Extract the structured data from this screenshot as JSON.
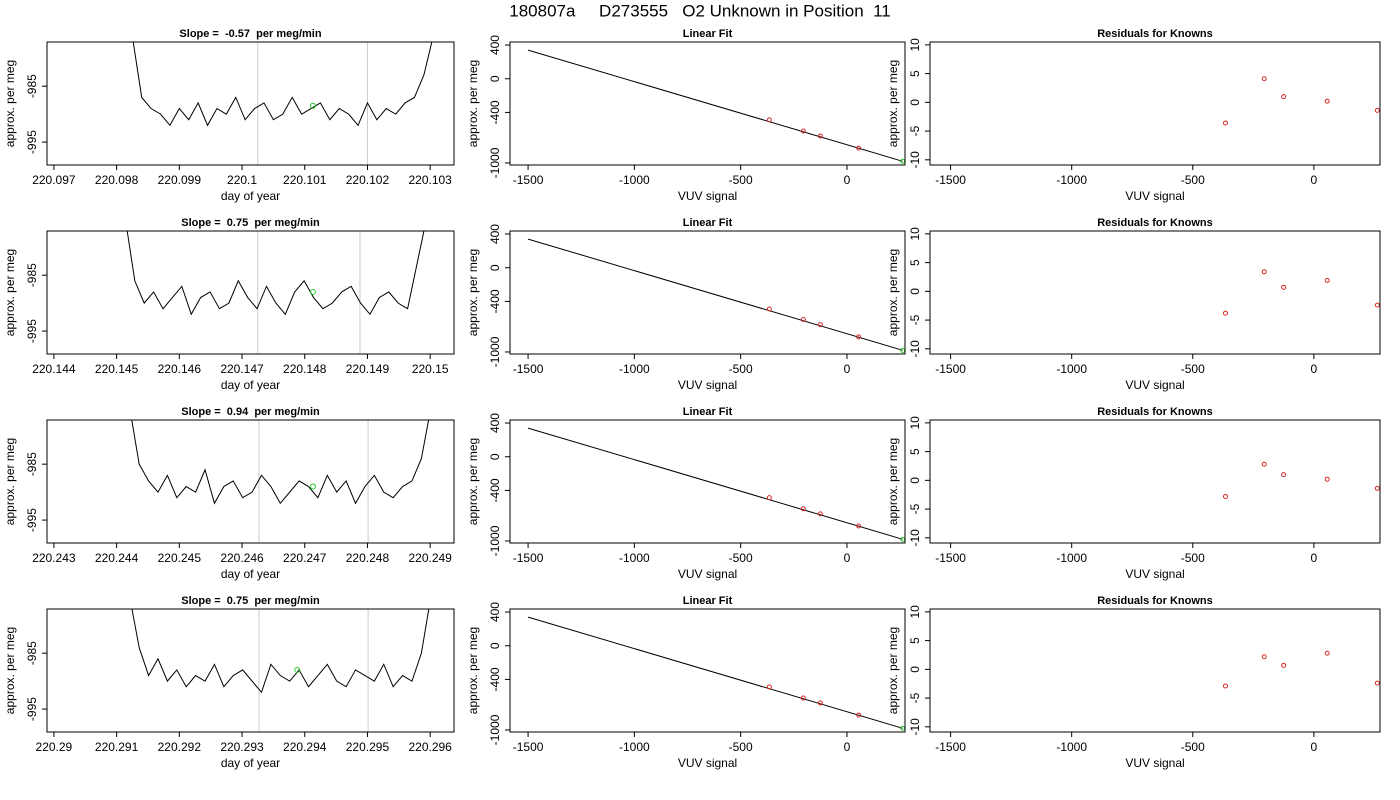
{
  "title": "180807a     D273555   O2 Unknown in Position  11",
  "chart_data": [
    {
      "type": "line",
      "title": "Slope =  -0.57  per meg/min",
      "x_label": "day of year",
      "y_label": "approx. per meg",
      "color": "#000000",
      "x": [
        220.09825,
        220.0984,
        220.09855,
        220.0987,
        220.09885,
        220.099,
        220.09915,
        220.0993,
        220.09945,
        220.0996,
        220.09975,
        220.0999,
        220.10005,
        220.1002,
        220.10035,
        220.1005,
        220.10065,
        220.1008,
        220.10095,
        220.1011,
        220.10125,
        220.1014,
        220.10155,
        220.1017,
        220.10185,
        220.102,
        220.10215,
        220.1023,
        220.10245,
        220.1026,
        220.10275,
        220.1029,
        220.10305
      ],
      "values": [
        -976,
        -987,
        -989,
        -990,
        -992,
        -989,
        -991,
        -988,
        -992,
        -989,
        -990,
        -987,
        -991,
        -989,
        -988,
        -991,
        -990,
        -987,
        -990,
        -989,
        -988,
        -991,
        -989,
        -990,
        -992,
        -988,
        -991,
        -989,
        -990,
        -988,
        -987,
        -983,
        -976
      ],
      "xlim": [
        220.09689,
        220.10338
      ],
      "xticks": [
        220.097,
        220.098,
        220.099,
        220.1,
        220.101,
        220.102,
        220.103
      ],
      "ylim": [
        -999.1,
        -977.1
      ],
      "yticks": [
        -985,
        -995
      ],
      "vlines": [
        220.10025,
        220.102
      ],
      "vline_color": "#cccccc",
      "highlight": {
        "x": 220.10113,
        "y": -988.5,
        "color": "#22cc22"
      }
    },
    {
      "type": "scatter",
      "title": "Linear Fit",
      "x_label": "VUV signal",
      "y_label": "approx. per meg",
      "fit_line": {
        "x": [
          -1500,
          262
        ],
        "y": [
          340,
          -980
        ],
        "color": "#000000"
      },
      "series": [
        {
          "color": "#d62728",
          "x": [
            -365,
            -205,
            -125,
            55
          ],
          "values": [
            -488,
            -620,
            -680,
            -824
          ]
        },
        {
          "color": "#22cc22",
          "x": [
            262
          ],
          "values": [
            -980
          ]
        }
      ],
      "xlim": [
        -1585,
        273
      ],
      "xticks": [
        -1500,
        -1000,
        -500,
        0
      ],
      "ylim": [
        -1024,
        436
      ],
      "yticks": [
        400,
        0,
        -400,
        -1000
      ]
    },
    {
      "type": "scatter",
      "title": "Residuals for Knowns",
      "x_label": "VUV signal",
      "y_label": "approx. per meg",
      "series": [
        {
          "color": "#d62728",
          "x": [
            -365,
            -205,
            -125,
            55,
            262
          ],
          "values": [
            -3.6,
            4.1,
            1.0,
            0.2,
            -1.4
          ]
        }
      ],
      "xlim": [
        -1585,
        273
      ],
      "xticks": [
        -1500,
        -1000,
        -500,
        0
      ],
      "ylim": [
        -10.9,
        10.5
      ],
      "yticks": [
        10,
        5,
        0,
        -5,
        -10
      ]
    },
    {
      "type": "line",
      "title": "Slope =  0.75  per meg/min",
      "x_label": "day of year",
      "y_label": "approx. per meg",
      "color": "#000000",
      "x": [
        220.14514,
        220.14529,
        220.14544,
        220.14559,
        220.14574,
        220.14589,
        220.14604,
        220.14619,
        220.14634,
        220.14649,
        220.14664,
        220.14679,
        220.14694,
        220.14709,
        220.14724,
        220.14739,
        220.14754,
        220.14769,
        220.14784,
        220.14799,
        220.14814,
        220.14829,
        220.14844,
        220.14859,
        220.14874,
        220.14889,
        220.14904,
        220.14919,
        220.14934,
        220.14949,
        220.14964,
        220.14979,
        220.14994
      ],
      "values": [
        -975,
        -986,
        -990,
        -988,
        -991,
        -989,
        -987,
        -992,
        -989,
        -988,
        -991,
        -990,
        -986,
        -989,
        -991,
        -987,
        -990,
        -992,
        -988,
        -986,
        -989,
        -991,
        -990,
        -988,
        -987,
        -990,
        -992,
        -989,
        -988,
        -990,
        -991,
        -983,
        -975
      ],
      "xlim": [
        220.14389,
        220.15038
      ],
      "xticks": [
        220.144,
        220.145,
        220.146,
        220.147,
        220.148,
        220.149,
        220.15
      ],
      "ylim": [
        -999.1,
        -977.1
      ],
      "yticks": [
        -985,
        -995
      ],
      "vlines": [
        220.14725,
        220.14888
      ],
      "vline_color": "#cccccc",
      "highlight": {
        "x": 220.14813,
        "y": -988,
        "color": "#22cc22"
      }
    },
    {
      "type": "scatter",
      "title": "Linear Fit",
      "x_label": "VUV signal",
      "y_label": "approx. per meg",
      "fit_line": {
        "x": [
          -1500,
          262
        ],
        "y": [
          340,
          -980
        ],
        "color": "#000000"
      },
      "series": [
        {
          "color": "#d62728",
          "x": [
            -365,
            -205,
            -125,
            55
          ],
          "values": [
            -490,
            -615,
            -675,
            -820
          ]
        },
        {
          "color": "#22cc22",
          "x": [
            262
          ],
          "values": [
            -982
          ]
        }
      ],
      "xlim": [
        -1585,
        273
      ],
      "xticks": [
        -1500,
        -1000,
        -500,
        0
      ],
      "ylim": [
        -1024,
        436
      ],
      "yticks": [
        400,
        0,
        -400,
        -1000
      ]
    },
    {
      "type": "scatter",
      "title": "Residuals for Knowns",
      "x_label": "VUV signal",
      "y_label": "approx. per meg",
      "series": [
        {
          "color": "#d62728",
          "x": [
            -365,
            -205,
            -125,
            55,
            262
          ],
          "values": [
            -3.8,
            3.4,
            0.7,
            1.9,
            -2.4
          ]
        }
      ],
      "xlim": [
        -1585,
        273
      ],
      "xticks": [
        -1500,
        -1000,
        -500,
        0
      ],
      "ylim": [
        -10.9,
        10.5
      ],
      "yticks": [
        10,
        5,
        0,
        -5,
        -10
      ]
    },
    {
      "type": "line",
      "title": "Slope =  0.94  per meg/min",
      "x_label": "day of year",
      "y_label": "approx. per meg",
      "color": "#000000",
      "x": [
        220.24421,
        220.24436,
        220.24451,
        220.24466,
        220.24481,
        220.24496,
        220.24511,
        220.24526,
        220.24541,
        220.24556,
        220.24571,
        220.24586,
        220.24601,
        220.24616,
        220.24631,
        220.24646,
        220.24661,
        220.24676,
        220.24691,
        220.24706,
        220.24721,
        220.24736,
        220.24751,
        220.24766,
        220.24781,
        220.24796,
        220.24811,
        220.24826,
        220.24841,
        220.24856,
        220.24871,
        220.24886,
        220.24901
      ],
      "values": [
        -975,
        -985,
        -988,
        -990,
        -987,
        -991,
        -989,
        -990,
        -986,
        -992,
        -989,
        -988,
        -991,
        -990,
        -987,
        -989,
        -992,
        -990,
        -988,
        -989,
        -991,
        -987,
        -990,
        -988,
        -992,
        -989,
        -987,
        -990,
        -991,
        -989,
        -988,
        -984,
        -975
      ],
      "xlim": [
        220.24289,
        220.24938
      ],
      "xticks": [
        220.243,
        220.244,
        220.245,
        220.246,
        220.247,
        220.248,
        220.249
      ],
      "ylim": [
        -999.1,
        -977.1
      ],
      "yticks": [
        -985,
        -995
      ],
      "vlines": [
        220.24627,
        220.24801
      ],
      "vline_color": "#cccccc",
      "highlight": {
        "x": 220.24713,
        "y": -989,
        "color": "#22cc22"
      }
    },
    {
      "type": "scatter",
      "title": "Linear Fit",
      "x_label": "VUV signal",
      "y_label": "approx. per meg",
      "fit_line": {
        "x": [
          -1500,
          262
        ],
        "y": [
          340,
          -980
        ],
        "color": "#000000"
      },
      "series": [
        {
          "color": "#d62728",
          "x": [
            -365,
            -205,
            -125,
            55
          ],
          "values": [
            -486,
            -618,
            -678,
            -822
          ]
        },
        {
          "color": "#22cc22",
          "x": [
            262
          ],
          "values": [
            -981
          ]
        }
      ],
      "xlim": [
        -1585,
        273
      ],
      "xticks": [
        -1500,
        -1000,
        -500,
        0
      ],
      "ylim": [
        -1024,
        436
      ],
      "yticks": [
        400,
        0,
        -400,
        -1000
      ]
    },
    {
      "type": "scatter",
      "title": "Residuals for Knowns",
      "x_label": "VUV signal",
      "y_label": "approx. per meg",
      "series": [
        {
          "color": "#d62728",
          "x": [
            -365,
            -205,
            -125,
            55,
            262
          ],
          "values": [
            -2.8,
            2.8,
            1.0,
            0.2,
            -1.4
          ]
        }
      ],
      "xlim": [
        -1585,
        273
      ],
      "xticks": [
        -1500,
        -1000,
        -500,
        0
      ],
      "ylim": [
        -10.9,
        10.5
      ],
      "yticks": [
        10,
        5,
        0,
        -5,
        -10
      ]
    },
    {
      "type": "line",
      "title": "Slope =  0.75  per meg/min",
      "x_label": "day of year",
      "y_label": "approx. per meg",
      "color": "#000000",
      "x": [
        220.29121,
        220.29136,
        220.29151,
        220.29166,
        220.29181,
        220.29196,
        220.29211,
        220.29226,
        220.29241,
        220.29256,
        220.29271,
        220.29286,
        220.29301,
        220.29316,
        220.29331,
        220.29346,
        220.29361,
        220.29376,
        220.29391,
        220.29406,
        220.29421,
        220.29436,
        220.29451,
        220.29466,
        220.29481,
        220.29496,
        220.29511,
        220.29526,
        220.29541,
        220.29556,
        220.29571,
        220.29586,
        220.29601
      ],
      "values": [
        -975,
        -984,
        -989,
        -986,
        -990,
        -988,
        -991,
        -989,
        -990,
        -987,
        -991,
        -989,
        -988,
        -990,
        -992,
        -987,
        -989,
        -990,
        -988,
        -991,
        -989,
        -987,
        -990,
        -991,
        -988,
        -989,
        -990,
        -987,
        -991,
        -989,
        -990,
        -985,
        -975
      ],
      "xlim": [
        220.28989,
        220.29638
      ],
      "xticks": [
        220.29,
        220.291,
        220.292,
        220.293,
        220.294,
        220.295,
        220.296
      ],
      "ylim": [
        -999.1,
        -977.1
      ],
      "yticks": [
        -985,
        -995
      ],
      "vlines": [
        220.29327,
        220.29501
      ],
      "vline_color": "#cccccc",
      "highlight": {
        "x": 220.29388,
        "y": -988,
        "color": "#22cc22"
      }
    },
    {
      "type": "scatter",
      "title": "Linear Fit",
      "x_label": "VUV signal",
      "y_label": "approx. per meg",
      "fit_line": {
        "x": [
          -1500,
          262
        ],
        "y": [
          340,
          -980
        ],
        "color": "#000000"
      },
      "series": [
        {
          "color": "#d62728",
          "x": [
            -365,
            -205,
            -125,
            55
          ],
          "values": [
            -489,
            -621,
            -679,
            -823
          ]
        },
        {
          "color": "#22cc22",
          "x": [
            262
          ],
          "values": [
            -980
          ]
        }
      ],
      "xlim": [
        -1585,
        273
      ],
      "xticks": [
        -1500,
        -1000,
        -500,
        0
      ],
      "ylim": [
        -1024,
        436
      ],
      "yticks": [
        400,
        0,
        -400,
        -1000
      ]
    },
    {
      "type": "scatter",
      "title": "Residuals for Knowns",
      "x_label": "VUV signal",
      "y_label": "approx. per meg",
      "series": [
        {
          "color": "#d62728",
          "x": [
            -365,
            -205,
            -125,
            55,
            262
          ],
          "values": [
            -2.9,
            2.2,
            0.7,
            2.8,
            -2.4
          ]
        }
      ],
      "xlim": [
        -1585,
        273
      ],
      "xticks": [
        -1500,
        -1000,
        -500,
        0
      ],
      "ylim": [
        -10.9,
        10.5
      ],
      "yticks": [
        10,
        5,
        0,
        -5,
        -10
      ]
    }
  ]
}
